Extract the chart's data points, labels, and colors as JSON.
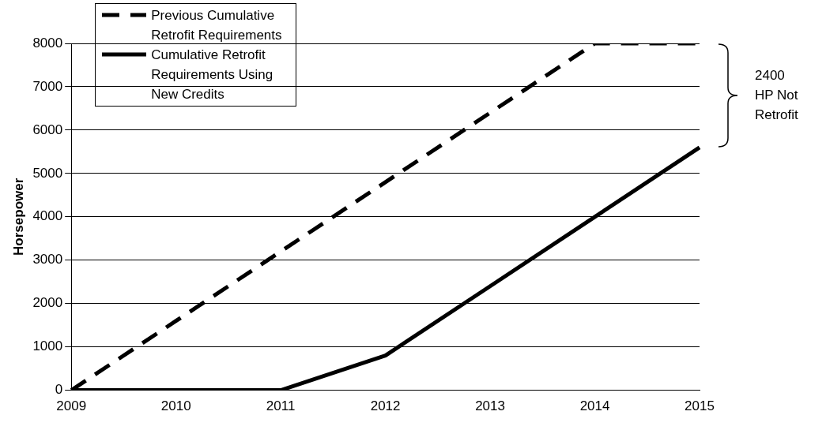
{
  "chart_data": {
    "type": "line",
    "ylabel": "Horsepower",
    "categories": [
      "2009",
      "2010",
      "2011",
      "2012",
      "2013",
      "2014",
      "2015"
    ],
    "series": [
      {
        "name": "Previous Cumulative Retrofit Requirements",
        "color": "#000000",
        "line_style": "dashed",
        "values": [
          0,
          1600,
          3200,
          4800,
          6400,
          8000,
          8000
        ]
      },
      {
        "name": "Cumulative Retrofit Requirements Using New Credits",
        "color": "#000000",
        "line_style": "solid",
        "values": [
          0,
          0,
          0,
          800,
          2400,
          4000,
          5600
        ]
      }
    ],
    "ylim": [
      0,
      8000
    ],
    "yticks": [
      0,
      1000,
      2000,
      3000,
      4000,
      5000,
      6000,
      7000,
      8000
    ],
    "grid": "y",
    "legend": "top left",
    "marker": "none",
    "annotations": [
      "2400 HP Not Retrofit"
    ]
  }
}
